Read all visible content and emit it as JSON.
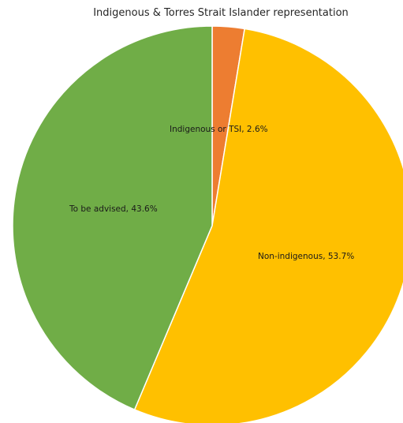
{
  "chart_data": {
    "type": "pie",
    "title": "Indigenous & Torres Strait Islander representation",
    "slices": [
      {
        "label": "Indigenous or TSI, 2.6%",
        "category": "Indigenous or TSI",
        "value": 2.6,
        "color": "#ED7D31"
      },
      {
        "label": "Non-indigenous, 53.7%",
        "category": "Non-indigenous",
        "value": 53.7,
        "color": "#FFC000"
      },
      {
        "label": "To be advised, 43.6%",
        "category": "To be advised",
        "value": 43.6,
        "color": "#70AD47"
      }
    ],
    "start_angle_deg": 0,
    "direction": "clockwise",
    "legend": "none",
    "slice_border_color": "#ffffff"
  }
}
